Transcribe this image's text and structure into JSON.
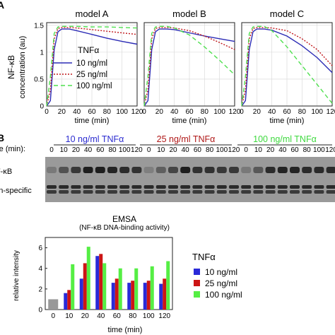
{
  "panel_letters": {
    "a": "A",
    "b": "B"
  },
  "chart_data": [
    {
      "type": "line",
      "panels": [
        "model A",
        "model B",
        "model C"
      ],
      "xlabel": "time (min)",
      "ylabel_top": "NF-κB",
      "ylabel_bottom": "concentration (au)",
      "xlim": [
        0,
        120
      ],
      "ylim": [
        0,
        1.55
      ],
      "xticks": [
        0,
        20,
        40,
        60,
        80,
        100,
        120
      ],
      "yticks": [
        0,
        0.5,
        1,
        1.5
      ],
      "grid": true,
      "legend": {
        "title": "TNFα",
        "placement": "inside-left"
      },
      "x": [
        0,
        5,
        10,
        15,
        20,
        30,
        40,
        60,
        80,
        100,
        120
      ],
      "series": [
        {
          "name": "10 ng/ml",
          "color": "#2b2bb5",
          "style": "solid",
          "models": [
            [
              0,
              0.1,
              1.05,
              1.38,
              1.43,
              1.43,
              1.4,
              1.33,
              1.26,
              1.2,
              1.15
            ],
            [
              0,
              0.1,
              1.05,
              1.38,
              1.43,
              1.43,
              1.42,
              1.36,
              1.3,
              1.25,
              1.2
            ],
            [
              0,
              0.1,
              1.05,
              1.38,
              1.43,
              1.43,
              1.41,
              1.3,
              1.12,
              0.9,
              0.62
            ]
          ]
        },
        {
          "name": "25 ng/ml",
          "color": "#c0181c",
          "style": "dotted",
          "models": [
            [
              0,
              0.3,
              1.25,
              1.44,
              1.46,
              1.46,
              1.45,
              1.42,
              1.39,
              1.36,
              1.33
            ],
            [
              0,
              0.3,
              1.25,
              1.44,
              1.46,
              1.46,
              1.45,
              1.4,
              1.3,
              1.18,
              1.05
            ],
            [
              0,
              0.3,
              1.25,
              1.44,
              1.46,
              1.46,
              1.45,
              1.4,
              1.25,
              1.05,
              0.75
            ]
          ]
        },
        {
          "name": "100 ng/ml",
          "color": "#4fe04f",
          "style": "dashed",
          "models": [
            [
              0,
              0.55,
              1.35,
              1.47,
              1.48,
              1.48,
              1.48,
              1.47,
              1.47,
              1.46,
              1.45
            ],
            [
              0,
              0.55,
              1.35,
              1.47,
              1.48,
              1.48,
              1.45,
              1.32,
              1.1,
              0.85,
              0.58
            ],
            [
              0,
              0.55,
              1.35,
              1.47,
              1.48,
              1.48,
              1.4,
              1.1,
              0.75,
              0.4,
              0.05
            ]
          ]
        }
      ]
    },
    {
      "type": "bar",
      "title": "EMSA",
      "subtitle": "(NF-κB DNA-binding activity)",
      "xlabel": "time (min)",
      "ylabel": "relative intensity",
      "ylim": [
        0,
        7
      ],
      "yticks": [
        0,
        2,
        4,
        6
      ],
      "categories": [
        "0",
        "10",
        "20",
        "40",
        "60",
        "80",
        "100",
        "120"
      ],
      "baseline": {
        "value": 1,
        "color": "#999999"
      },
      "legend": {
        "title": "TNFα",
        "placement": "right"
      },
      "series": [
        {
          "name": "10 ng/ml",
          "color": "#2a2ad8",
          "values": [
            null,
            1.6,
            3.0,
            5.2,
            2.6,
            2.6,
            2.6,
            2.5
          ]
        },
        {
          "name": "25 ng/ml",
          "color": "#cc1515",
          "values": [
            null,
            1.9,
            4.5,
            5.4,
            3.0,
            2.8,
            2.8,
            3.0
          ]
        },
        {
          "name": "100 ng/ml",
          "color": "#55ee44",
          "values": [
            null,
            4.4,
            6.1,
            4.5,
            4.0,
            4.0,
            4.2,
            4.7
          ]
        }
      ]
    }
  ],
  "gel": {
    "conditions": [
      {
        "label": "10 ng/ml TNFα",
        "color": "#2c2cd0"
      },
      {
        "label": "25 ng/ml TNFα",
        "color": "#b01818"
      },
      {
        "label": "100 ng/ml TNFα",
        "color": "#3ed93e"
      }
    ],
    "time_label": "time (min):",
    "lane_times": [
      "0",
      "10",
      "20",
      "40",
      "60",
      "80",
      "100",
      "120"
    ],
    "row_labels": [
      "NF-κB",
      "non-specific"
    ],
    "nfkb_intensity": [
      [
        0.15,
        0.45,
        0.65,
        0.85,
        0.85,
        0.8,
        0.75,
        0.7
      ],
      [
        0.1,
        0.35,
        0.55,
        0.85,
        0.7,
        0.7,
        0.65,
        0.65
      ],
      [
        0.15,
        0.4,
        0.75,
        0.8,
        0.8,
        0.75,
        0.75,
        0.75
      ]
    ]
  }
}
